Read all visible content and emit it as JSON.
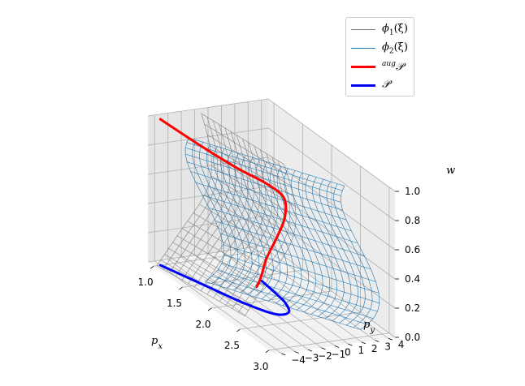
{
  "chart_data": {
    "type": "surface3d",
    "axes": {
      "x": {
        "label": "p_x",
        "ticks": [
          "1.0",
          "1.5",
          "2.0",
          "2.5",
          "3.0"
        ],
        "range": [
          0.9,
          3.1
        ]
      },
      "y": {
        "label": "p_y",
        "ticks": [
          "−4",
          "−3",
          "−2",
          "−1",
          "0",
          "1",
          "2",
          "3",
          "4"
        ],
        "range": [
          -4.5,
          4.5
        ]
      },
      "z": {
        "label": "w",
        "ticks": [
          "0.0",
          "0.2",
          "0.4",
          "0.6",
          "0.8",
          "1.0"
        ],
        "range": [
          0,
          1
        ]
      }
    },
    "series": [
      {
        "name": "ϕ₁(ξ)",
        "kind": "wireframe",
        "color": "#808080"
      },
      {
        "name": "ϕ₂(ξ)",
        "kind": "wireframe",
        "color": "#1f77b4"
      },
      {
        "name": "augP",
        "kind": "curve",
        "color": "#ff0000",
        "points": [
          [
            1.0,
            -4.0,
            1.0
          ],
          [
            1.6,
            -3.5,
            0.98
          ],
          [
            2.0,
            -2.5,
            0.93
          ],
          [
            2.15,
            -1.0,
            0.85
          ],
          [
            2.1,
            0.5,
            0.72
          ],
          [
            2.0,
            1.0,
            0.55
          ],
          [
            1.9,
            0.8,
            0.38
          ],
          [
            1.8,
            0.5,
            0.22
          ],
          [
            1.75,
            0.3,
            0.08
          ],
          [
            1.7,
            0.2,
            0.0
          ]
        ]
      },
      {
        "name": "P",
        "kind": "curve",
        "color": "#0000ff",
        "points": [
          [
            1.0,
            -4.0,
            0.0
          ],
          [
            1.5,
            -3.0,
            0.0
          ],
          [
            2.0,
            -2.0,
            0.0
          ],
          [
            2.3,
            -1.0,
            0.0
          ],
          [
            2.3,
            0.0,
            0.0
          ],
          [
            2.1,
            0.6,
            0.0
          ],
          [
            1.9,
            0.8,
            0.0
          ],
          [
            1.6,
            1.0,
            0.0
          ]
        ]
      }
    ],
    "legend": {
      "placement": "top-right",
      "entries": [
        {
          "label_main": "ϕ",
          "label_sub": "1",
          "label_tail": "(ξ)"
        },
        {
          "label_main": "ϕ",
          "label_sub": "2",
          "label_tail": "(ξ)"
        },
        {
          "label_sup": "aug",
          "label_main": "𝒫"
        },
        {
          "label_main": "𝒫"
        }
      ]
    },
    "grid": true
  }
}
